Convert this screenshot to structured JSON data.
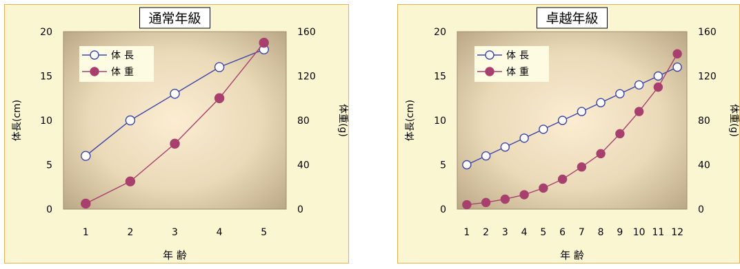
{
  "chart_data": [
    {
      "type": "line",
      "title": "通常年級",
      "xlabel": "年 齢",
      "ylabel": "体長(cm)",
      "y2label": "体重(g)",
      "categories": [
        "1",
        "2",
        "3",
        "4",
        "5"
      ],
      "ylim": [
        0,
        20
      ],
      "y2lim": [
        0,
        160
      ],
      "y_ticks": [
        "0",
        "5",
        "10",
        "15",
        "20"
      ],
      "y2_ticks": [
        "0",
        "40",
        "80",
        "120",
        "160"
      ],
      "legend": "top-left",
      "series": [
        {
          "name": "体長",
          "axis": "left",
          "marker": "open-circle",
          "color": "#3c44a8",
          "values": [
            6,
            10,
            13,
            16,
            18
          ]
        },
        {
          "name": "体重",
          "axis": "right",
          "marker": "filled-circle",
          "color": "#a8406e",
          "values": [
            5,
            25,
            59,
            100,
            150
          ]
        }
      ]
    },
    {
      "type": "line",
      "title": "卓越年級",
      "xlabel": "年 齢",
      "ylabel": "体長(cm)",
      "y2label": "体重(g)",
      "categories": [
        "1",
        "2",
        "3",
        "4",
        "5",
        "6",
        "7",
        "8",
        "9",
        "10",
        "11",
        "12"
      ],
      "ylim": [
        0,
        20
      ],
      "y2lim": [
        0,
        160
      ],
      "y_ticks": [
        "0",
        "5",
        "10",
        "15",
        "20"
      ],
      "y2_ticks": [
        "0",
        "40",
        "80",
        "120",
        "160"
      ],
      "legend": "top-left",
      "series": [
        {
          "name": "体長",
          "axis": "left",
          "marker": "open-circle",
          "color": "#3c44a8",
          "values": [
            5,
            6,
            7,
            8,
            9,
            10,
            11,
            12,
            13,
            14,
            15,
            16
          ]
        },
        {
          "name": "体重",
          "axis": "right",
          "marker": "filled-circle",
          "color": "#a8406e",
          "values": [
            4,
            6,
            9,
            13,
            19,
            27,
            38,
            50,
            68,
            88,
            110,
            140
          ]
        }
      ]
    }
  ]
}
